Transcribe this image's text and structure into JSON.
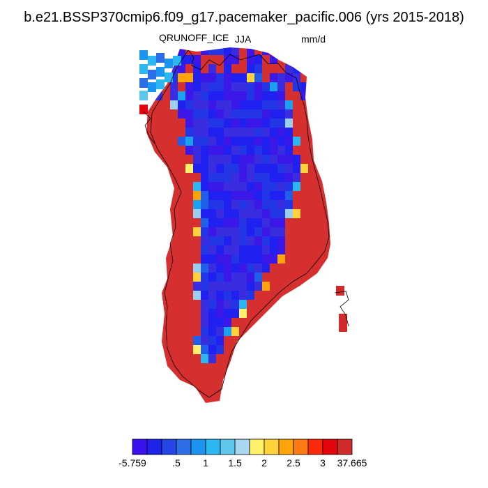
{
  "title": "b.e21.BSSP370cmip6.f09_g17.pacemaker_pacific.006 (yrs 2015-2018)",
  "variable": "QRUNOFF_ICE",
  "season": "JJA",
  "units": "mm/d",
  "colorbar": {
    "colors": [
      "#3a10f0",
      "#1f22e8",
      "#2545e6",
      "#2c6de8",
      "#1c95f0",
      "#2cb6f2",
      "#5fc7ee",
      "#a8d6f0",
      "#fff06a",
      "#fed23a",
      "#fda40a",
      "#fd7a10",
      "#fa2a0a",
      "#e4060a",
      "#d12c2c"
    ],
    "labels": [
      "-5.759",
      ".5",
      "1",
      "1.5",
      "2",
      "2.5",
      "3",
      "37.665"
    ]
  },
  "map_colors": {
    "interior": [
      "#2020f0",
      "#3b18e8",
      "#2236e6",
      "#3a2de0"
    ],
    "margin_cool": [
      "#2060e8",
      "#1ca0f0",
      "#9ad0ee",
      "#2cb6f2"
    ],
    "margin_warm": [
      "#fed23a",
      "#fda40a",
      "#fff06a"
    ],
    "coastal": "#d62f2f",
    "coastline": "#000000"
  }
}
